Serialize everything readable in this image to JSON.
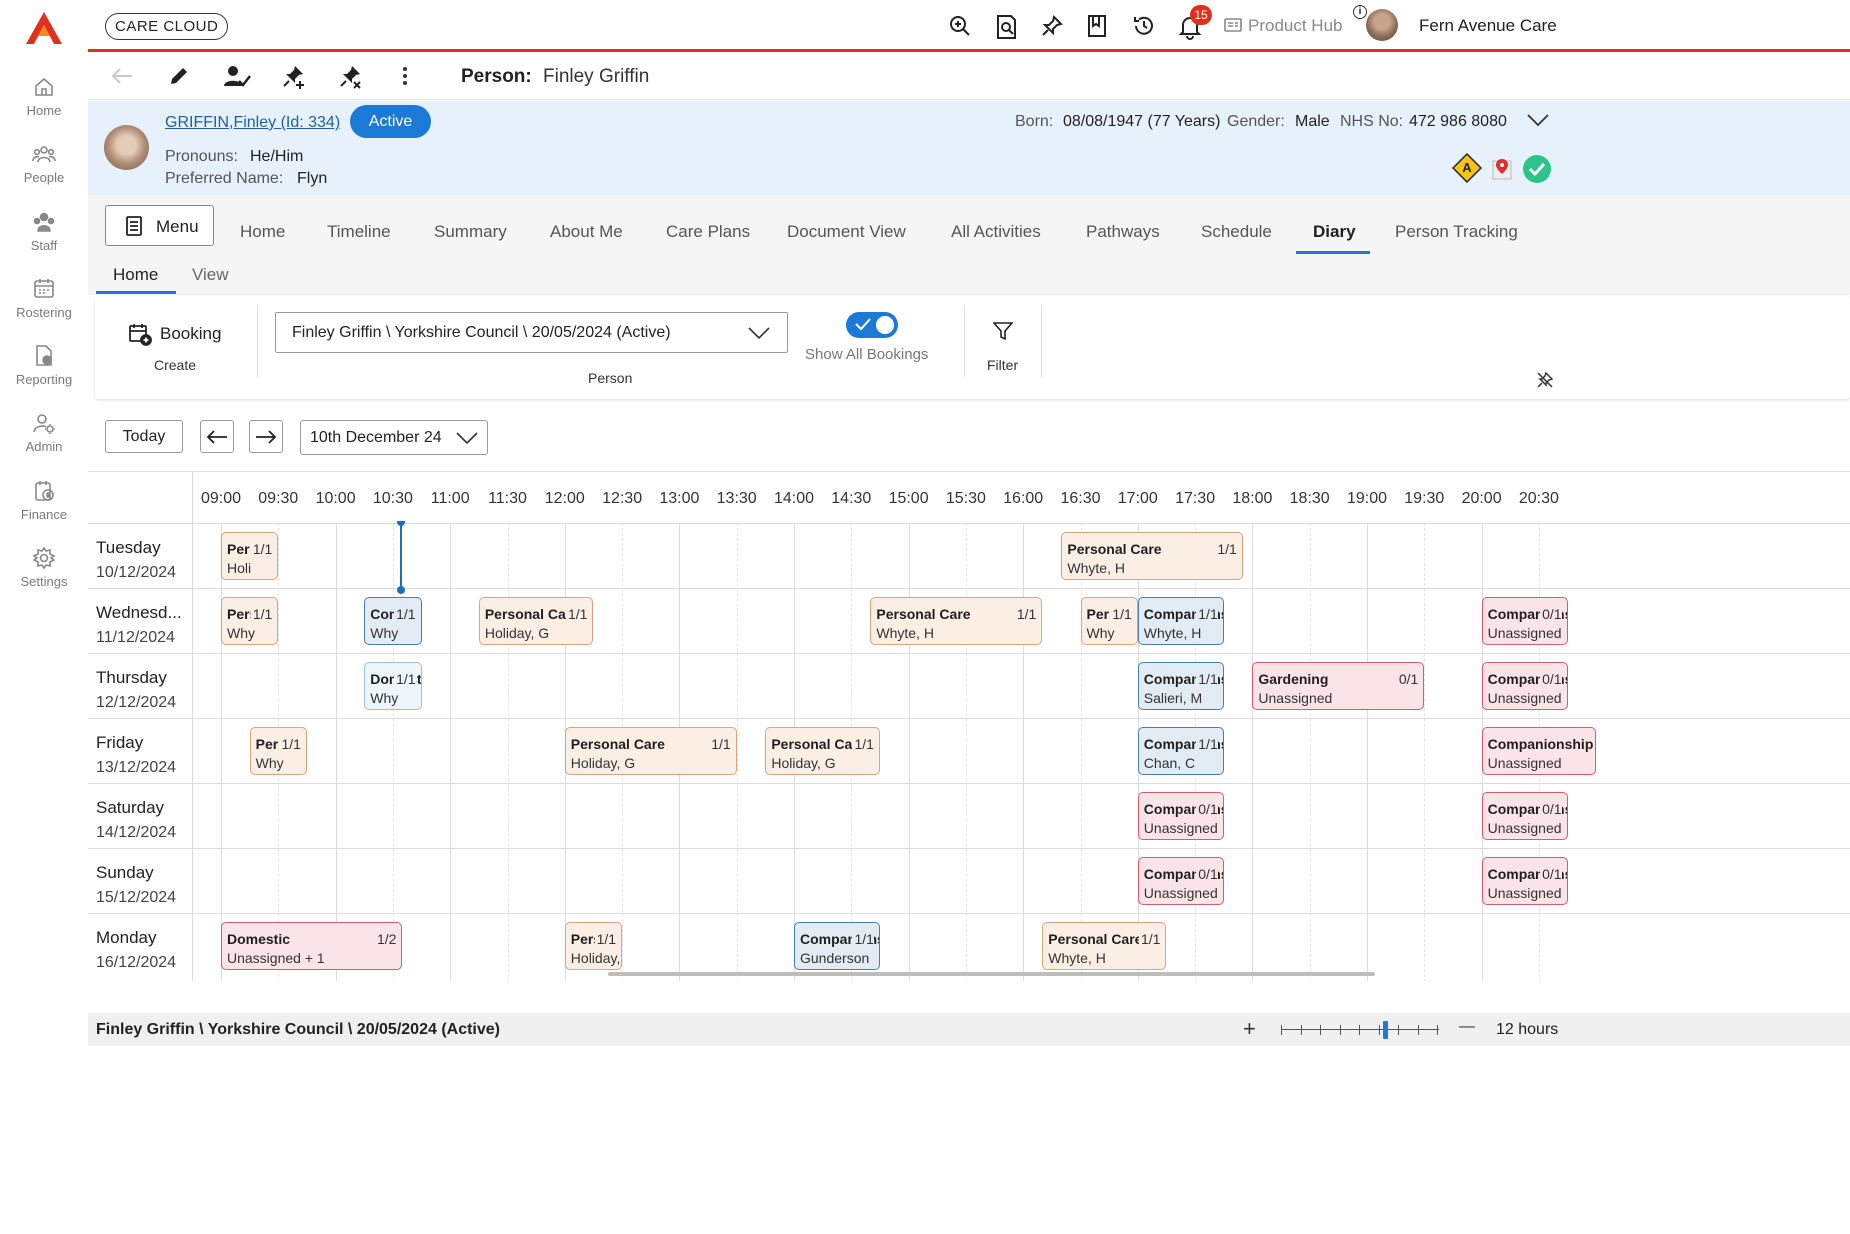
{
  "app": {
    "brand": "CARE CLOUD",
    "notification_count": "15",
    "product_hub": "Product Hub",
    "org_name": "Fern Avenue Care",
    "accent_color": "#e0301e"
  },
  "sidebar": {
    "items": [
      {
        "label": "Home",
        "icon": "home-icon"
      },
      {
        "label": "People",
        "icon": "people-icon"
      },
      {
        "label": "Staff",
        "icon": "staff-icon"
      },
      {
        "label": "Rostering",
        "icon": "rostering-icon"
      },
      {
        "label": "Reporting",
        "icon": "reporting-icon"
      },
      {
        "label": "Admin",
        "icon": "admin-icon"
      },
      {
        "label": "Finance",
        "icon": "finance-icon"
      },
      {
        "label": "Settings",
        "icon": "settings-icon"
      }
    ]
  },
  "toolbar": {
    "title_label": "Person:",
    "title_value": "Finley Griffin"
  },
  "patient": {
    "name_link": "GRIFFIN,Finley (Id: 334)",
    "status": "Active",
    "pronouns_label": "Pronouns:",
    "pronouns": "He/Him",
    "preferred_label": "Preferred Name:",
    "preferred": "Flyn",
    "born_label": "Born:",
    "born": "08/08/1947 (77 Years)",
    "gender_label": "Gender:",
    "gender": "Male",
    "nhs_label": "NHS No:",
    "nhs": "472 986 8080",
    "alert_badge": "A"
  },
  "tabs": {
    "menu": "Menu",
    "items": [
      "Home",
      "Timeline",
      "Summary",
      "About Me",
      "Care Plans",
      "Document View",
      "All Activities",
      "Pathways",
      "Schedule",
      "Diary",
      "Person Tracking"
    ],
    "active": "Diary"
  },
  "subtabs": {
    "items": [
      "Home",
      "View"
    ],
    "active": "Home"
  },
  "ribbon": {
    "booking_label": "Booking",
    "create_label": "Create",
    "person_select": "Finley Griffin \\ Yorkshire Council \\ 20/05/2024 (Active)",
    "person_label": "Person",
    "show_all_label": "Show All Bookings",
    "show_all_on": true,
    "filter_label": "Filter"
  },
  "nav": {
    "today": "Today",
    "date": "10th December 24"
  },
  "diary": {
    "times": [
      "09:00",
      "09:30",
      "10:00",
      "10:30",
      "11:00",
      "11:30",
      "12:00",
      "12:30",
      "13:00",
      "13:30",
      "14:00",
      "14:30",
      "15:00",
      "15:30",
      "16:00",
      "16:30",
      "17:00",
      "17:30",
      "18:00",
      "18:30",
      "19:00",
      "19:30",
      "20:00",
      "20:30"
    ],
    "days": [
      {
        "name": "Tuesday",
        "date": "10/12/2024"
      },
      {
        "name": "Wednesd...",
        "date": "11/12/2024"
      },
      {
        "name": "Thursday",
        "date": "12/12/2024"
      },
      {
        "name": "Friday",
        "date": "13/12/2024"
      },
      {
        "name": "Saturday",
        "date": "14/12/2024"
      },
      {
        "name": "Sunday",
        "date": "15/12/2024"
      },
      {
        "name": "Monday",
        "date": "16/12/2024"
      }
    ],
    "bookings": [
      {
        "day": 0,
        "start": "09:00",
        "end": "09:30",
        "title": "Per:",
        "count": "1/1",
        "sub": "Holi",
        "style": "orange"
      },
      {
        "day": 0,
        "start": "16:20",
        "end": "17:55",
        "title": "Personal Care",
        "count": "1/1",
        "sub": "Whyte, H",
        "style": "orange"
      },
      {
        "day": 1,
        "start": "09:00",
        "end": "09:30",
        "title": "Pers",
        "count": "1/1",
        "sub": "Why",
        "style": "orange"
      },
      {
        "day": 1,
        "start": "10:15",
        "end": "10:45",
        "title": "Com",
        "count": "1/1",
        "sub": "Why",
        "style": "blue"
      },
      {
        "day": 1,
        "start": "11:15",
        "end": "12:15",
        "title": "Personal Care",
        "count": "1/1",
        "sub": "Holiday, G",
        "style": "orange"
      },
      {
        "day": 1,
        "start": "14:40",
        "end": "16:10",
        "title": "Personal Care",
        "count": "1/1",
        "sub": "Whyte, H",
        "style": "orange"
      },
      {
        "day": 1,
        "start": "16:30",
        "end": "17:00",
        "title": "Pers",
        "count": "1/1",
        "sub": "Why",
        "style": "orange"
      },
      {
        "day": 1,
        "start": "17:00",
        "end": "17:45",
        "title": "Companionship",
        "count": "1/1",
        "sub": "Whyte, H",
        "style": "blue"
      },
      {
        "day": 1,
        "start": "20:00",
        "end": "20:45",
        "title": "Companionship",
        "count": "0/1",
        "sub": "Unassigned",
        "style": "red"
      },
      {
        "day": 2,
        "start": "10:15",
        "end": "10:45",
        "title": "Domestic",
        "count": "1/1",
        "sub": "Why",
        "style": "pale"
      },
      {
        "day": 2,
        "start": "17:00",
        "end": "17:45",
        "title": "Companionship",
        "count": "1/1",
        "sub": "Salieri, M",
        "style": "blue"
      },
      {
        "day": 2,
        "start": "18:00",
        "end": "19:30",
        "title": "Gardening",
        "count": "0/1",
        "sub": "Unassigned",
        "style": "red"
      },
      {
        "day": 2,
        "start": "20:00",
        "end": "20:45",
        "title": "Companionship",
        "count": "0/1",
        "sub": "Unassigned",
        "style": "red"
      },
      {
        "day": 3,
        "start": "09:15",
        "end": "09:45",
        "title": "Pers",
        "count": "1/1",
        "sub": "Why",
        "style": "orange"
      },
      {
        "day": 3,
        "start": "12:00",
        "end": "13:30",
        "title": "Personal Care",
        "count": "1/1",
        "sub": "Holiday, G",
        "style": "orange"
      },
      {
        "day": 3,
        "start": "13:45",
        "end": "14:45",
        "title": "Personal Care",
        "count": "1/1",
        "sub": "Holiday, G",
        "style": "orange"
      },
      {
        "day": 3,
        "start": "17:00",
        "end": "17:45",
        "title": "Companionship",
        "count": "1/1",
        "sub": "Chan, C",
        "style": "blue"
      },
      {
        "day": 3,
        "start": "20:00",
        "end": "21:00",
        "title": "Companionship",
        "count": "",
        "sub": "Unassigned",
        "style": "red"
      },
      {
        "day": 4,
        "start": "17:00",
        "end": "17:45",
        "title": "Companionship",
        "count": "0/1",
        "sub": "Unassigned",
        "style": "red"
      },
      {
        "day": 4,
        "start": "20:00",
        "end": "20:45",
        "title": "Companionship",
        "count": "0/1",
        "sub": "Unassigned",
        "style": "red"
      },
      {
        "day": 5,
        "start": "17:00",
        "end": "17:45",
        "title": "Companionship",
        "count": "0/1",
        "sub": "Unassigned",
        "style": "red"
      },
      {
        "day": 5,
        "start": "20:00",
        "end": "20:45",
        "title": "Companionship",
        "count": "0/1",
        "sub": "Unassigned",
        "style": "red"
      },
      {
        "day": 6,
        "start": "09:00",
        "end": "10:35",
        "title": "Domestic",
        "count": "1/2",
        "sub": "Unassigned + 1",
        "style": "red"
      },
      {
        "day": 6,
        "start": "12:00",
        "end": "12:30",
        "title": "Pers",
        "count": "1/1",
        "sub": "Holiday, G",
        "style": "orange"
      },
      {
        "day": 6,
        "start": "14:00",
        "end": "14:45",
        "title": "Companionship",
        "count": "1/1",
        "sub": "Gunderson",
        "style": "blue"
      },
      {
        "day": 6,
        "start": "16:10",
        "end": "17:15",
        "title": "Personal Care",
        "count": "1/1",
        "sub": "Whyte, H",
        "style": "orange"
      }
    ]
  },
  "footer": {
    "context": "Finley Griffin \\ Yorkshire Council \\ 20/05/2024 (Active)",
    "zoom_in": "+",
    "zoom_out": "—",
    "zoom_label": "12 hours",
    "zoom_level": 0.66
  }
}
